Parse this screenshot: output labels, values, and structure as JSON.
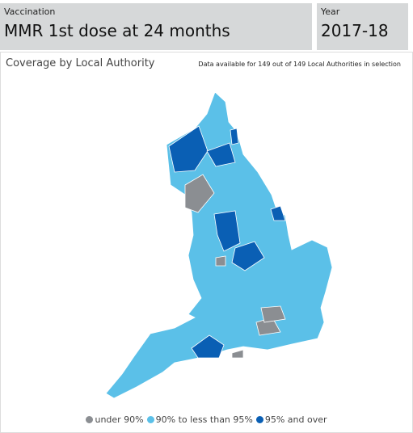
{
  "filters": [
    {
      "label": "Vaccination",
      "value": "MMR 1st dose at 24 months"
    },
    {
      "label": "Year",
      "value": "2017-18"
    }
  ],
  "panel": {
    "title": "Coverage by Local Authority",
    "note": "Data available for 149 out of 149 Local Authorities in selection"
  },
  "legend": [
    {
      "label": "under 90%",
      "color": "#8b8e92"
    },
    {
      "label": "90% to less than 95%",
      "color": "#5bc0e8"
    },
    {
      "label": "95% and over",
      "color": "#0a5fb4"
    }
  ]
}
